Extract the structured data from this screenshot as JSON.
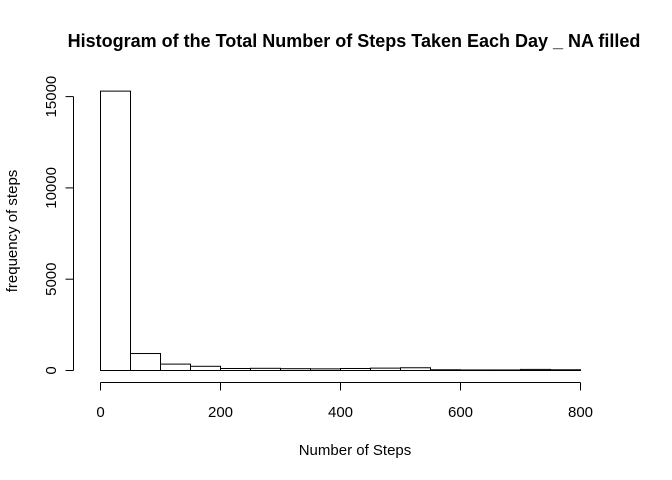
{
  "chart_data": {
    "type": "bar",
    "title": "Histogram of the Total Number of Steps Taken Each Day _ NA filled",
    "xlabel": "Number of Steps",
    "ylabel": "frequency of steps",
    "bin_edges": [
      0,
      50,
      100,
      150,
      200,
      250,
      300,
      350,
      400,
      450,
      500,
      550,
      600,
      650,
      700,
      750,
      800
    ],
    "values": [
      15300,
      930,
      350,
      230,
      110,
      120,
      100,
      90,
      110,
      130,
      150,
      40,
      30,
      30,
      60,
      40
    ],
    "xlim": [
      0,
      850
    ],
    "ylim": [
      0,
      15300
    ],
    "x_ticks": [
      0,
      200,
      400,
      600,
      800
    ],
    "y_ticks": [
      0,
      5000,
      10000,
      15000
    ],
    "grid": false,
    "legend": "none"
  }
}
